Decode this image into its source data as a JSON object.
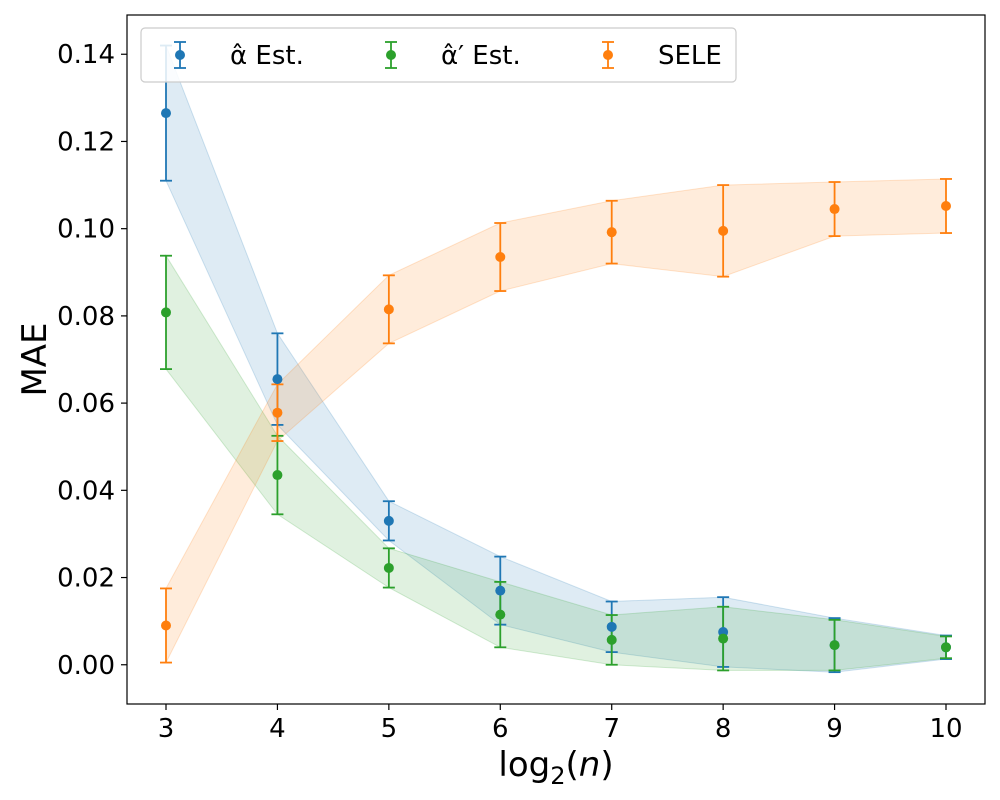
{
  "chart_data": {
    "type": "line",
    "title": "",
    "xlabel": "log₂(n)",
    "ylabel": "MAE",
    "x": [
      3,
      4,
      5,
      6,
      7,
      8,
      9,
      10
    ],
    "xlim": [
      2.65,
      10.35
    ],
    "ylim": [
      -0.009,
      0.149
    ],
    "xticks": [
      3,
      4,
      5,
      6,
      7,
      8,
      9,
      10
    ],
    "yticks": [
      0.0,
      0.02,
      0.04,
      0.06,
      0.08,
      0.1,
      0.12,
      0.14
    ],
    "ytick_labels": [
      "0.00",
      "0.02",
      "0.04",
      "0.06",
      "0.08",
      "0.10",
      "0.12",
      "0.14"
    ],
    "legend_location": "top-left",
    "series": [
      {
        "name": "α̂ Est.",
        "color": "#1f77b4",
        "values": [
          0.1265,
          0.0655,
          0.033,
          0.017,
          0.0087,
          0.0075,
          0.0045,
          0.004
        ],
        "errors": [
          0.0155,
          0.0105,
          0.0045,
          0.0078,
          0.0058,
          0.008,
          0.0062,
          0.0027
        ]
      },
      {
        "name": "α̂′ Est.",
        "color": "#2ca02c",
        "values": [
          0.0808,
          0.0435,
          0.0222,
          0.0115,
          0.0057,
          0.006,
          0.0045,
          0.004
        ],
        "errors": [
          0.013,
          0.009,
          0.0045,
          0.0075,
          0.0057,
          0.0073,
          0.0058,
          0.0025
        ]
      },
      {
        "name": "SELE",
        "color": "#ff7f0e",
        "values": [
          0.009,
          0.0578,
          0.0815,
          0.0935,
          0.0992,
          0.0995,
          0.1045,
          0.1052
        ],
        "errors": [
          0.0085,
          0.0065,
          0.0078,
          0.0078,
          0.0072,
          0.0105,
          0.0062,
          0.0062
        ]
      }
    ]
  }
}
